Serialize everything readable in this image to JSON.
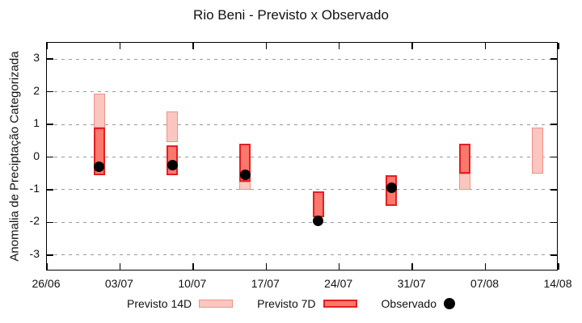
{
  "title": "Rio Beni - Previsto x Observado",
  "chart_data": {
    "type": "bar",
    "title": "Rio Beni - Previsto x Observado",
    "xlabel": "",
    "ylabel": "Anomalia de Preciptação Categorizada",
    "ylim": [
      -3.5,
      3.5
    ],
    "x_days_range": [
      0,
      49
    ],
    "grid": "horizontal dashed gridlines at integer y values",
    "legend_position": "bottom",
    "y_ticks": [
      3,
      2,
      1,
      0,
      -1,
      -2,
      -3
    ],
    "x_ticks": [
      {
        "label": "26/06",
        "day": 0
      },
      {
        "label": "03/07",
        "day": 7
      },
      {
        "label": "10/07",
        "day": 14
      },
      {
        "label": "17/07",
        "day": 21
      },
      {
        "label": "24/07",
        "day": 28
      },
      {
        "label": "31/07",
        "day": 35
      },
      {
        "label": "07/08",
        "day": 42
      },
      {
        "label": "14/08",
        "day": 49
      }
    ],
    "legend": [
      {
        "label": "Previsto 14D",
        "kind": "bar",
        "fill": "#f9c7c0",
        "border": "#f0908a"
      },
      {
        "label": "Previsto 7D",
        "kind": "bar",
        "fill": "#fa786c",
        "border": "#e41f22"
      },
      {
        "label": "Observado",
        "kind": "dot",
        "fill": "#000000"
      }
    ],
    "points": [
      {
        "date": "01/07",
        "day": 5,
        "previsto14": [
          1.95,
          0.9
        ],
        "previsto7": [
          0.9,
          -0.55
        ],
        "observado": -0.3
      },
      {
        "date": "08/07",
        "day": 12,
        "previsto14": [
          1.4,
          0.45
        ],
        "previsto7": [
          0.35,
          -0.55
        ],
        "observado": -0.25
      },
      {
        "date": "15/07",
        "day": 19,
        "previsto14": [
          -0.75,
          -1.0
        ],
        "previsto7": [
          0.4,
          -0.75
        ],
        "observado": -0.55
      },
      {
        "date": "22/07",
        "day": 26,
        "previsto14": null,
        "previsto7": [
          -1.05,
          -1.85
        ],
        "observado": -1.95
      },
      {
        "date": "29/07",
        "day": 33,
        "previsto14": null,
        "previsto7": [
          -0.55,
          -1.5
        ],
        "observado": -0.95
      },
      {
        "date": "05/08",
        "day": 40,
        "previsto14": [
          -0.5,
          -1.0
        ],
        "previsto7": [
          0.4,
          -0.5
        ],
        "observado": null
      },
      {
        "date": "12/08",
        "day": 47,
        "previsto14": [
          0.9,
          -0.5
        ],
        "previsto7": null,
        "observado": null
      }
    ],
    "colors": {
      "previsto14_fill": "#f9c7c0",
      "previsto14_border": "#f0908a",
      "previsto7_fill": "#fa786c",
      "previsto7_border": "#e41f22",
      "observado": "#000000",
      "grid": "#9a9a9a",
      "frame": "#000000",
      "background": "#ffffff"
    }
  }
}
